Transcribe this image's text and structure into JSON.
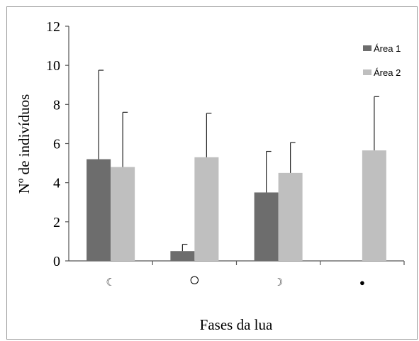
{
  "chart_data": {
    "type": "bar",
    "categories": [
      "☾",
      "○",
      "☽",
      "●"
    ],
    "series": [
      {
        "name": "Área 1",
        "color": "#6d6d6d",
        "values": [
          5.2,
          0.5,
          3.5,
          null
        ],
        "errors": [
          4.55,
          0.35,
          2.1,
          null
        ]
      },
      {
        "name": "Área 2",
        "color": "#bfbfbf",
        "values": [
          4.8,
          5.3,
          4.5,
          5.65
        ],
        "errors": [
          2.8,
          2.25,
          1.55,
          2.75
        ]
      }
    ],
    "xlabel": "Fases da lua",
    "ylabel": "Nº de indivíduos",
    "ylim": [
      0,
      12
    ],
    "yticks": [
      "0",
      "2",
      "4",
      "6",
      "8",
      "10",
      "12"
    ],
    "grid": false,
    "legend_position": "top-right"
  }
}
